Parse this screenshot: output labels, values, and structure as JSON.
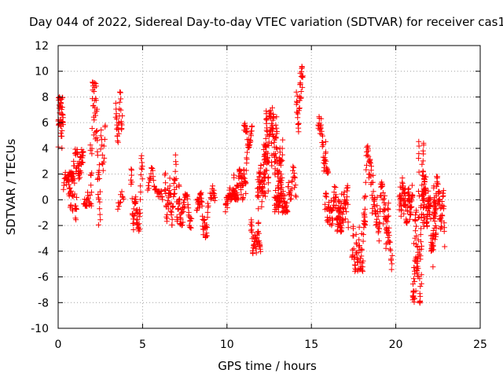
{
  "chart_data": {
    "type": "scatter",
    "title": "Day 044 of 2022, Sidereal Day-to-day VTEC variation (SDTVAR) for receiver cas1",
    "xlabel": "GPS time / hours",
    "ylabel": "SDTVAR / TECUs",
    "xlim": [
      0,
      25
    ],
    "ylim": [
      -10,
      12
    ],
    "xticks": [
      0,
      5,
      10,
      15,
      20,
      25
    ],
    "yticks": [
      -10,
      -8,
      -6,
      -4,
      -2,
      0,
      2,
      4,
      6,
      8,
      10,
      12
    ],
    "x_tick_labels": [
      "0",
      "5",
      "10",
      "15",
      "20",
      "25"
    ],
    "y_tick_labels": [
      "-10",
      "-8",
      "-6",
      "-4",
      "-2",
      "0",
      "2",
      "4",
      "6",
      "8",
      "10",
      "12"
    ],
    "grid": true,
    "marker": "+",
    "color": "#ff0000",
    "clusters": [
      {
        "x": [
          0.0,
          0.3
        ],
        "y": [
          -2.5,
          8.0
        ],
        "n": 45
      },
      {
        "x": [
          0.3,
          0.9
        ],
        "y": [
          0.0,
          2.2
        ],
        "n": 30
      },
      {
        "x": [
          0.6,
          1.1
        ],
        "y": [
          -3.0,
          3.0
        ],
        "n": 40
      },
      {
        "x": [
          1.0,
          1.5
        ],
        "y": [
          -1.5,
          4.0
        ],
        "n": 45
      },
      {
        "x": [
          1.5,
          1.9
        ],
        "y": [
          -0.5,
          3.0
        ],
        "n": 20
      },
      {
        "x": [
          1.9,
          2.5
        ],
        "y": [
          -2.0,
          9.3
        ],
        "n": 60
      },
      {
        "x": [
          2.5,
          2.8
        ],
        "y": [
          0.0,
          7.0
        ],
        "n": 15
      },
      {
        "x": [
          3.4,
          3.8
        ],
        "y": [
          3.5,
          8.5
        ],
        "n": 30
      },
      {
        "x": [
          3.5,
          3.9
        ],
        "y": [
          -1.0,
          2.0
        ],
        "n": 10
      },
      {
        "x": [
          4.3,
          5.0
        ],
        "y": [
          -2.5,
          3.5
        ],
        "n": 55
      },
      {
        "x": [
          5.3,
          6.2
        ],
        "y": [
          0.0,
          2.5
        ],
        "n": 35
      },
      {
        "x": [
          6.3,
          7.4
        ],
        "y": [
          -2.0,
          4.2
        ],
        "n": 80
      },
      {
        "x": [
          7.4,
          7.9
        ],
        "y": [
          -2.8,
          0.5
        ],
        "n": 30
      },
      {
        "x": [
          8.2,
          8.9
        ],
        "y": [
          -3.0,
          0.6
        ],
        "n": 50
      },
      {
        "x": [
          9.0,
          9.3
        ],
        "y": [
          -1.5,
          1.5
        ],
        "n": 15
      },
      {
        "x": [
          9.9,
          10.5
        ],
        "y": [
          -2.0,
          1.0
        ],
        "n": 40
      },
      {
        "x": [
          10.4,
          11.2
        ],
        "y": [
          0.0,
          5.0
        ],
        "n": 60
      },
      {
        "x": [
          11.0,
          11.5
        ],
        "y": [
          4.0,
          7.0
        ],
        "n": 30
      },
      {
        "x": [
          11.4,
          12.0
        ],
        "y": [
          -4.2,
          0.0
        ],
        "n": 45
      },
      {
        "x": [
          11.8,
          12.4
        ],
        "y": [
          -1.0,
          5.0
        ],
        "n": 60
      },
      {
        "x": [
          12.2,
          13.3
        ],
        "y": [
          0.0,
          7.2
        ],
        "n": 130
      },
      {
        "x": [
          12.8,
          13.6
        ],
        "y": [
          -1.0,
          3.5
        ],
        "n": 60
      },
      {
        "x": [
          13.6,
          14.1
        ],
        "y": [
          0.0,
          4.5
        ],
        "n": 25
      },
      {
        "x": [
          14.1,
          14.5
        ],
        "y": [
          5.0,
          10.7
        ],
        "n": 35
      },
      {
        "x": [
          15.4,
          16.0
        ],
        "y": [
          2.0,
          6.5
        ],
        "n": 40
      },
      {
        "x": [
          15.8,
          16.8
        ],
        "y": [
          -2.0,
          3.5
        ],
        "n": 70
      },
      {
        "x": [
          16.5,
          17.2
        ],
        "y": [
          -2.5,
          4.0
        ],
        "n": 50
      },
      {
        "x": [
          17.4,
          18.2
        ],
        "y": [
          -5.6,
          1.5
        ],
        "n": 60
      },
      {
        "x": [
          18.1,
          18.9
        ],
        "y": [
          -2.0,
          4.2
        ],
        "n": 55
      },
      {
        "x": [
          18.9,
          19.6
        ],
        "y": [
          -5.0,
          1.5
        ],
        "n": 50
      },
      {
        "x": [
          19.4,
          19.8
        ],
        "y": [
          -6.0,
          -2.0
        ],
        "n": 20
      },
      {
        "x": [
          20.2,
          21.0
        ],
        "y": [
          -2.0,
          2.5
        ],
        "n": 80
      },
      {
        "x": [
          21.0,
          21.7
        ],
        "y": [
          -8.2,
          4.9
        ],
        "n": 110
      },
      {
        "x": [
          21.6,
          22.4
        ],
        "y": [
          -4.0,
          1.8
        ],
        "n": 90
      },
      {
        "x": [
          22.2,
          22.9
        ],
        "y": [
          -5.5,
          2.0
        ],
        "n": 60
      }
    ]
  }
}
